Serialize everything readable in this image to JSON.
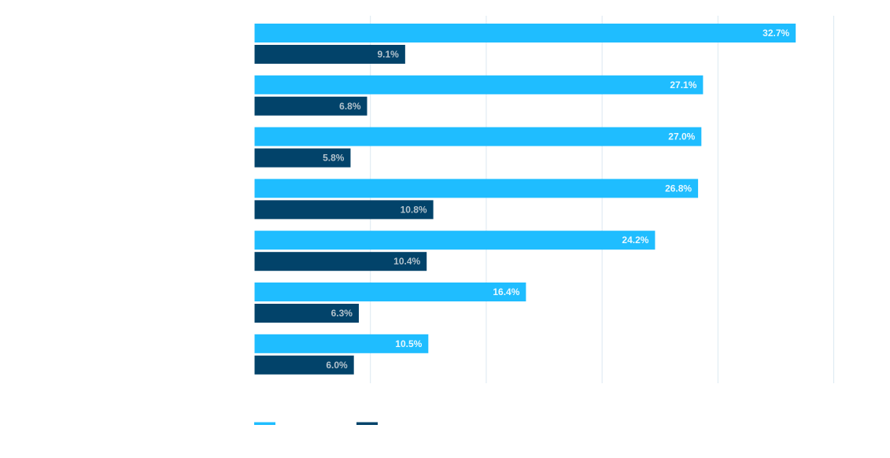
{
  "chart_data": {
    "type": "bar",
    "orientation": "horizontal",
    "categories": [
      "",
      "",
      "",
      "",
      "",
      "",
      ""
    ],
    "series": [
      {
        "values": [
          32.7,
          27.1,
          27.0,
          26.8,
          24.2,
          16.4,
          10.5
        ],
        "labels": [
          "32.7%",
          "27.1%",
          "27.0%",
          "26.8%",
          "24.2%",
          "16.4%",
          "10.5%"
        ],
        "color": "#1fbdff",
        "label_color": "#e8f8ff"
      },
      {
        "values": [
          9.1,
          6.8,
          5.8,
          10.8,
          10.4,
          6.3,
          6.0
        ],
        "labels": [
          "9.1%",
          "6.8%",
          "5.8%",
          "10.8%",
          "10.4%",
          "6.3%",
          "6.0%"
        ],
        "color": "#02436a",
        "label_color": "#b3c2cc"
      }
    ],
    "xlim": [
      0,
      35
    ],
    "grid": true,
    "grid_color": "#dbe8f1",
    "legend_position": "bottom-left",
    "title": "",
    "xlabel": "",
    "ylabel": ""
  }
}
